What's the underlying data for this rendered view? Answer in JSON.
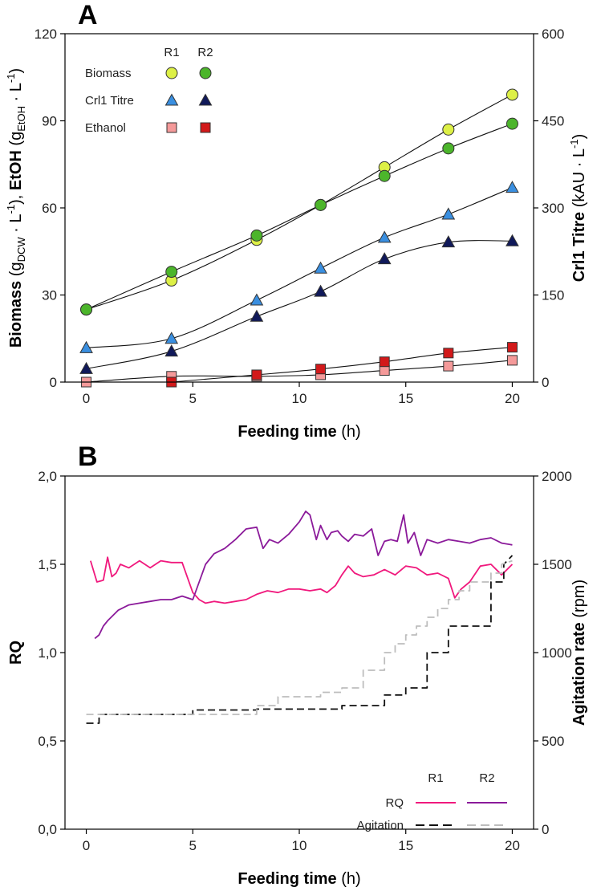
{
  "chart_data": [
    {
      "panel": "A",
      "type": "line",
      "xlabel": {
        "bold": "Feeding time",
        "unit": "(h)"
      },
      "ylabel_left": {
        "parts": [
          {
            "t": "Biomass",
            "b": true
          },
          {
            "t": " (g"
          },
          {
            "t": "DCW",
            "sub": true
          },
          {
            "t": " · L"
          },
          {
            "t": "-1",
            "sup": true
          },
          {
            "t": "), "
          },
          {
            "t": "EtOH",
            "b": true
          },
          {
            "t": " (g"
          },
          {
            "t": "EtOH",
            "sub": true
          },
          {
            "t": " · L"
          },
          {
            "t": "-1",
            "sup": true
          },
          {
            "t": ")"
          }
        ]
      },
      "ylabel_right": {
        "parts": [
          {
            "t": "Crl1 Titre",
            "b": true
          },
          {
            "t": " (kAU · L"
          },
          {
            "t": "-1",
            "sup": true
          },
          {
            "t": ")"
          }
        ]
      },
      "xlim": [
        -1,
        21
      ],
      "ylim_left": [
        0,
        120
      ],
      "ylim_right": [
        0,
        600
      ],
      "x_ticks": [
        "0",
        "5",
        "10",
        "15",
        "20"
      ],
      "y_ticks_left": [
        "0",
        "30",
        "60",
        "90",
        "120"
      ],
      "y_ticks_right": [
        "0",
        "150",
        "300",
        "450",
        "600"
      ],
      "legend": {
        "headers": [
          "R1",
          "R2"
        ],
        "rows": [
          "Biomass",
          "Crl1 Titre",
          "Ethanol"
        ]
      },
      "series": [
        {
          "name": "Biomass R1",
          "marker": "circle",
          "color": "#ddf046",
          "axis": "left",
          "x": [
            0,
            4,
            8,
            11,
            14,
            17,
            20
          ],
          "values": [
            25,
            35,
            49,
            61,
            74,
            87,
            99
          ]
        },
        {
          "name": "Biomass R2",
          "marker": "circle",
          "color": "#4cb52b",
          "axis": "left",
          "x": [
            0,
            4,
            8,
            11,
            14,
            17,
            20
          ],
          "values": [
            25,
            38,
            50.5,
            61,
            71,
            80.5,
            89
          ]
        },
        {
          "name": "Crl1 Titre R1",
          "marker": "triangle",
          "color": "#3a8fe0",
          "axis": "right",
          "x": [
            0,
            4,
            8,
            11,
            14,
            17,
            20
          ],
          "values": [
            59,
            75,
            141,
            196,
            249,
            289,
            335
          ]
        },
        {
          "name": "Crl1 Titre R2",
          "marker": "triangle",
          "color": "#10195a",
          "axis": "right",
          "x": [
            0,
            4,
            8,
            11,
            14,
            17,
            20
          ],
          "values": [
            23,
            53,
            113,
            156,
            212,
            241,
            243
          ]
        },
        {
          "name": "Ethanol R1",
          "marker": "square",
          "color": "#f59a9a",
          "axis": "left",
          "x": [
            0,
            4,
            8,
            11,
            14,
            17,
            20
          ],
          "values": [
            0,
            2,
            2,
            2.5,
            4,
            5.5,
            7.5
          ]
        },
        {
          "name": "Ethanol R2",
          "marker": "square",
          "color": "#d2191a",
          "axis": "left",
          "x": [
            4,
            8,
            11,
            14,
            17,
            20
          ],
          "values": [
            0,
            2.5,
            4.5,
            7,
            10,
            12
          ]
        }
      ]
    },
    {
      "panel": "B",
      "type": "line",
      "xlabel": {
        "bold": "Feeding time",
        "unit": "(h)"
      },
      "ylabel_left": {
        "parts": [
          {
            "t": "RQ",
            "b": true
          }
        ]
      },
      "ylabel_right": {
        "parts": [
          {
            "t": "Agitation rate",
            "b": true
          },
          {
            "t": " (rpm)"
          }
        ]
      },
      "xlim": [
        -1,
        21
      ],
      "ylim_left": [
        0,
        2
      ],
      "ylim_right": [
        0,
        2000
      ],
      "x_ticks": [
        "0",
        "5",
        "10",
        "15",
        "20"
      ],
      "y_ticks_left": [
        "0,0",
        "0,5",
        "1,0",
        "1,5",
        "2,0"
      ],
      "y_ticks_right": [
        "0",
        "500",
        "1000",
        "1500",
        "2000"
      ],
      "legend": {
        "headers": [
          "R1",
          "R2"
        ],
        "rows": [
          "RQ",
          "Agitation"
        ]
      },
      "series": [
        {
          "name": "RQ R1",
          "style": "solid",
          "color": "#f0197d",
          "axis": "left",
          "x": [
            0.2,
            0.5,
            0.8,
            1.0,
            1.2,
            1.4,
            1.6,
            2.0,
            2.5,
            3.0,
            3.5,
            4.0,
            4.5,
            5.0,
            5.3,
            5.6,
            6.0,
            6.5,
            7.0,
            7.5,
            8.0,
            8.5,
            9.0,
            9.5,
            10.0,
            10.5,
            11.0,
            11.3,
            11.7,
            12.0,
            12.3,
            12.6,
            13.0,
            13.5,
            14.0,
            14.5,
            15.0,
            15.5,
            16.0,
            16.5,
            17.0,
            17.3,
            17.6,
            18.0,
            18.5,
            19.0,
            19.5,
            20.0
          ],
          "values": [
            1.52,
            1.4,
            1.41,
            1.54,
            1.43,
            1.45,
            1.5,
            1.48,
            1.52,
            1.48,
            1.52,
            1.51,
            1.51,
            1.34,
            1.3,
            1.28,
            1.29,
            1.28,
            1.29,
            1.3,
            1.33,
            1.35,
            1.34,
            1.36,
            1.36,
            1.35,
            1.36,
            1.34,
            1.38,
            1.44,
            1.49,
            1.45,
            1.43,
            1.44,
            1.47,
            1.44,
            1.49,
            1.48,
            1.44,
            1.45,
            1.42,
            1.31,
            1.36,
            1.4,
            1.49,
            1.5,
            1.44,
            1.5
          ]
        },
        {
          "name": "RQ R2",
          "style": "solid",
          "color": "#8b1a9a",
          "axis": "left",
          "x": [
            0.4,
            0.6,
            0.8,
            1.0,
            1.5,
            2.0,
            2.5,
            3.0,
            3.5,
            4.0,
            4.5,
            5.0,
            5.3,
            5.6,
            6.0,
            6.5,
            7.0,
            7.5,
            8.0,
            8.3,
            8.6,
            9.0,
            9.5,
            10.0,
            10.3,
            10.5,
            10.8,
            11.0,
            11.3,
            11.5,
            11.8,
            12.0,
            12.3,
            12.6,
            13.0,
            13.4,
            13.7,
            14.0,
            14.3,
            14.6,
            14.9,
            15.1,
            15.4,
            15.7,
            16.0,
            16.5,
            17.0,
            17.5,
            18.0,
            18.5,
            19.0,
            19.5,
            20.0
          ],
          "values": [
            1.08,
            1.1,
            1.15,
            1.18,
            1.24,
            1.27,
            1.28,
            1.29,
            1.3,
            1.3,
            1.32,
            1.3,
            1.4,
            1.5,
            1.56,
            1.59,
            1.64,
            1.7,
            1.71,
            1.59,
            1.64,
            1.62,
            1.67,
            1.74,
            1.8,
            1.78,
            1.64,
            1.72,
            1.64,
            1.68,
            1.69,
            1.66,
            1.63,
            1.67,
            1.66,
            1.7,
            1.55,
            1.63,
            1.64,
            1.63,
            1.78,
            1.62,
            1.68,
            1.55,
            1.64,
            1.62,
            1.64,
            1.63,
            1.62,
            1.64,
            1.65,
            1.62,
            1.61
          ]
        },
        {
          "name": "Agitation R1",
          "style": "dashed",
          "color": "#111111",
          "axis": "right",
          "x": [
            0,
            0.6,
            0.6,
            5,
            5,
            8,
            8,
            12,
            12,
            14,
            14,
            15,
            15,
            16,
            16,
            17,
            17,
            19,
            19,
            19.6,
            19.6,
            20
          ],
          "values": [
            600,
            600,
            650,
            650,
            675,
            675,
            680,
            680,
            700,
            700,
            760,
            760,
            800,
            800,
            1000,
            1000,
            1150,
            1150,
            1400,
            1400,
            1500,
            1550
          ]
        },
        {
          "name": "Agitation R2",
          "style": "dashed",
          "color": "#bdbdbd",
          "axis": "right",
          "x": [
            0,
            8,
            8,
            9,
            9,
            11,
            11,
            12,
            12,
            13,
            13,
            14,
            14,
            14.5,
            14.5,
            15,
            15,
            15.5,
            15.5,
            16,
            16,
            16.5,
            16.5,
            17,
            17,
            17.5,
            17.5,
            18,
            18,
            19,
            19,
            19.5,
            19.5,
            20
          ],
          "values": [
            650,
            650,
            700,
            700,
            750,
            750,
            775,
            775,
            800,
            800,
            900,
            900,
            1000,
            1000,
            1050,
            1050,
            1100,
            1100,
            1150,
            1150,
            1200,
            1200,
            1250,
            1250,
            1300,
            1300,
            1350,
            1350,
            1400,
            1400,
            1450,
            1450,
            1500,
            1520
          ]
        }
      ]
    }
  ]
}
